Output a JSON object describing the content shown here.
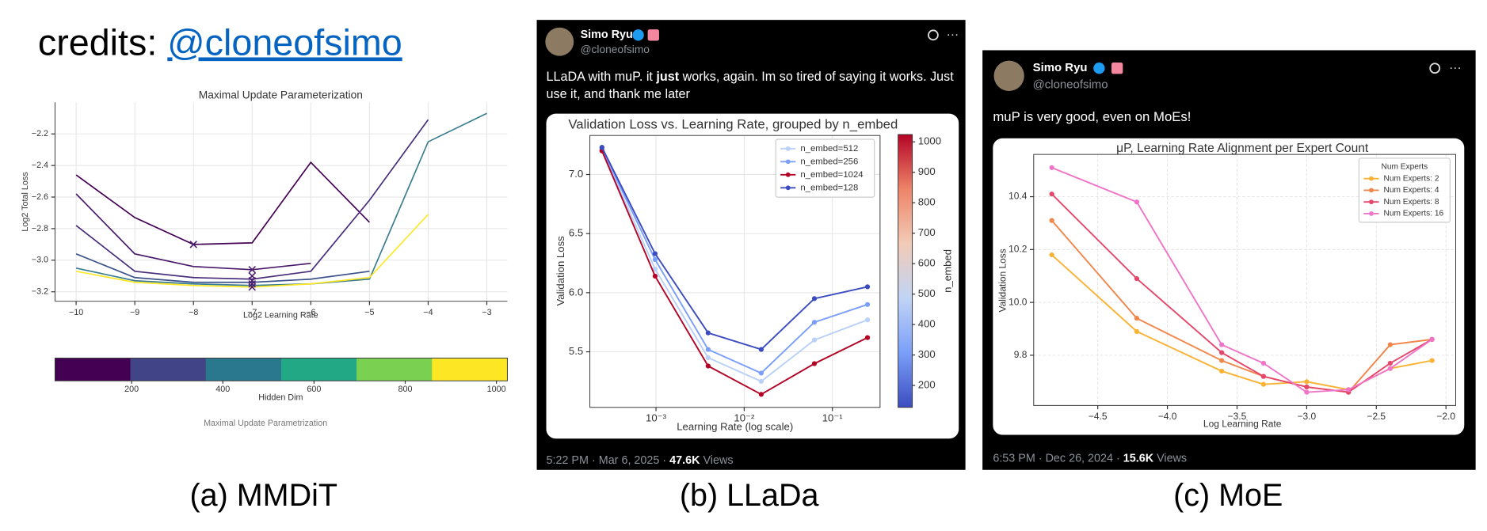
{
  "header": {
    "credits": "credits: ",
    "handle": "@cloneofsimo"
  },
  "captions": [
    "(a) MMDiT",
    "(b) LLaDa",
    "(c) MoE"
  ],
  "tweets": [
    {
      "name": "Simo Ryu",
      "handle": "@cloneofsimo",
      "text_1": "LLaDA with muP. it ",
      "text_bold": "just",
      "text_2": " works, again. Im so tired of saying it works. Just",
      "text_3": "use it, and thank me later",
      "time": "5:22 PM · Mar 6, 2025 · ",
      "views": "47.6K",
      "views_label": " Views"
    },
    {
      "name": "Simo Ryu",
      "handle": "@cloneofsimo",
      "text_1": "muP is very good, even on MoEs!",
      "time": "6:53 PM · Dec 26, 2024 · ",
      "views": "15.6K",
      "views_label": " Views"
    }
  ],
  "chart_data": [
    {
      "type": "line",
      "title": "Maximal Update Parameterization",
      "x_label": "Log2 Learning Rate",
      "y_label": "Log2 Total Loss",
      "note": "Maximal Update Parametrization",
      "x": [
        -10,
        -9,
        -8,
        -7,
        -6,
        -5,
        -4,
        -3
      ],
      "series": [
        {
          "color": "#440154",
          "values": [
            -2.46,
            -2.73,
            -2.9,
            -2.89,
            -2.38,
            -2.76,
            null,
            null
          ]
        },
        {
          "color": "#48186a",
          "values": [
            -2.58,
            -2.96,
            -3.04,
            -3.06,
            -3.02,
            null,
            null,
            null
          ]
        },
        {
          "color": "#472d7b",
          "values": [
            -2.78,
            -3.07,
            -3.11,
            -3.12,
            -3.07,
            -2.62,
            -2.11,
            null
          ]
        },
        {
          "color": "#3b528b",
          "values": [
            -2.96,
            -3.11,
            -3.14,
            -3.14,
            -3.12,
            -3.07,
            null,
            null
          ]
        },
        {
          "color": "#3a7c8f",
          "values": [
            -3.05,
            -3.13,
            -3.15,
            -3.16,
            -3.15,
            -3.12,
            -2.25,
            -2.07
          ]
        },
        {
          "color": "#fde725",
          "values": [
            -3.07,
            -3.14,
            -3.16,
            -3.17,
            -3.15,
            -3.11,
            -2.71,
            null
          ]
        }
      ],
      "minima_x": [
        -8,
        -7,
        -7,
        -7,
        -7,
        -7
      ],
      "minima_y": [
        -2.9,
        -3.06,
        -3.1,
        -3.13,
        -3.15,
        -3.17
      ],
      "minima_color": "#4b1d6e",
      "xlim": [
        -10.36,
        -2.65
      ],
      "ylim": [
        -3.26,
        -2.0
      ],
      "xticks": [
        {
          "value": -10,
          "label": "−10"
        },
        {
          "value": -9,
          "label": "−9"
        },
        {
          "value": -8,
          "label": "−8"
        },
        {
          "value": -7,
          "label": "−7"
        },
        {
          "value": -6,
          "label": "−6"
        },
        {
          "value": -5,
          "label": "−5"
        },
        {
          "value": -4,
          "label": "−4"
        },
        {
          "value": -3,
          "label": "−3"
        }
      ],
      "yticks": [
        {
          "value": -3.2,
          "label": "−3.2"
        },
        {
          "value": -3.0,
          "label": "−3.0"
        },
        {
          "value": -2.8,
          "label": "−2.8"
        },
        {
          "value": -2.6,
          "label": "−2.6"
        },
        {
          "value": -2.4,
          "label": "−2.4"
        },
        {
          "value": -2.2,
          "label": "−2.2"
        }
      ],
      "grid": true,
      "markers": false,
      "colorbar": {
        "label": "Hidden Dim",
        "lim": [
          32,
          1024
        ],
        "ticks": [
          200,
          400,
          600,
          800,
          1000
        ],
        "colors": [
          "#440154",
          "#414487",
          "#2a788e",
          "#22a884",
          "#7ad151",
          "#fde725"
        ],
        "discrete": true
      }
    },
    {
      "type": "line",
      "title": "Validation Loss vs. Learning Rate, grouped by n_embed",
      "x_label": "Learning Rate (log scale)",
      "y_label": "Validation Loss",
      "x": [
        0.000244,
        0.000977,
        0.0039,
        0.0156,
        0.0625,
        0.25
      ],
      "xscale": "log",
      "series": [
        {
          "name": "n_embed=512",
          "color": "#b9d0f9",
          "values": [
            7.21,
            6.2,
            5.45,
            5.25,
            5.6,
            5.77
          ]
        },
        {
          "name": "n_embed=256",
          "color": "#7b9ff9",
          "values": [
            7.22,
            6.28,
            5.52,
            5.32,
            5.75,
            5.9
          ]
        },
        {
          "name": "n_embed=1024",
          "color": "#b40426",
          "values": [
            7.2,
            6.14,
            5.38,
            5.14,
            5.4,
            5.62
          ]
        },
        {
          "name": "n_embed=128",
          "color": "#3b4cc0",
          "values": [
            7.23,
            6.33,
            5.66,
            5.52,
            5.95,
            6.05
          ]
        }
      ],
      "xlim": [
        0.000178,
        0.347
      ],
      "ylim": [
        5.03,
        7.33
      ],
      "xticks": [
        {
          "value": 0.001,
          "label": "10⁻³"
        },
        {
          "value": 0.01,
          "label": "10⁻²"
        },
        {
          "value": 0.1,
          "label": "10⁻¹"
        }
      ],
      "yticks": [
        5.5,
        {
          "value": 6.0,
          "label": "6.0"
        },
        6.5,
        {
          "value": 7.0,
          "label": "7.0"
        }
      ],
      "grid": true,
      "markers": true,
      "legend": "upper right",
      "colorbar": {
        "label": "n_embed",
        "lim": [
          128,
          1024
        ],
        "ticks": [
          200,
          300,
          400,
          500,
          600,
          700,
          800,
          900,
          1000
        ],
        "colors": [
          "#3b4cc0",
          "#7b9ff9",
          "#c0d4f5",
          "#f2cbb7",
          "#ee8468",
          "#b40426"
        ],
        "discrete": false
      }
    },
    {
      "type": "line",
      "title": "μP, Learning Rate Alignment per Expert Count",
      "x_label": "Log Learning Rate",
      "y_label": "Validation Loss",
      "x": [
        -4.83,
        -4.22,
        -3.61,
        -3.31,
        -3.0,
        -2.7,
        -2.4,
        -2.1
      ],
      "series": [
        {
          "name": "Num Experts: 2",
          "color": "#f9b233",
          "values": [
            10.18,
            9.89,
            9.74,
            9.69,
            9.7,
            9.67,
            9.75,
            9.78
          ]
        },
        {
          "name": "Num Experts: 4",
          "color": "#f0864a",
          "values": [
            10.31,
            9.94,
            9.78,
            9.72,
            9.68,
            9.66,
            9.84,
            9.86
          ]
        },
        {
          "name": "Num Experts: 8",
          "color": "#e5476b",
          "values": [
            10.41,
            10.09,
            9.81,
            9.72,
            9.68,
            9.66,
            9.77,
            9.86
          ]
        },
        {
          "name": "Num Experts: 16",
          "color": "#f075c8",
          "values": [
            10.51,
            10.38,
            9.84,
            9.77,
            9.66,
            9.67,
            9.75,
            9.86
          ]
        }
      ],
      "xlim": [
        -4.96,
        -1.93
      ],
      "ylim": [
        9.61,
        10.56
      ],
      "xticks": [
        {
          "value": -4.5,
          "label": "−4.5"
        },
        {
          "value": -4.0,
          "label": "−4.0"
        },
        {
          "value": -3.5,
          "label": "−3.5"
        },
        {
          "value": -3.0,
          "label": "−3.0"
        },
        {
          "value": -2.5,
          "label": "−2.5"
        },
        {
          "value": -2.0,
          "label": "−2.0"
        }
      ],
      "yticks": [
        9.8,
        {
          "value": 10.0,
          "label": "10.0"
        },
        10.2,
        10.4
      ],
      "grid": true,
      "markers": true,
      "legend": "upper right",
      "legend_title": "Num Experts"
    }
  ]
}
